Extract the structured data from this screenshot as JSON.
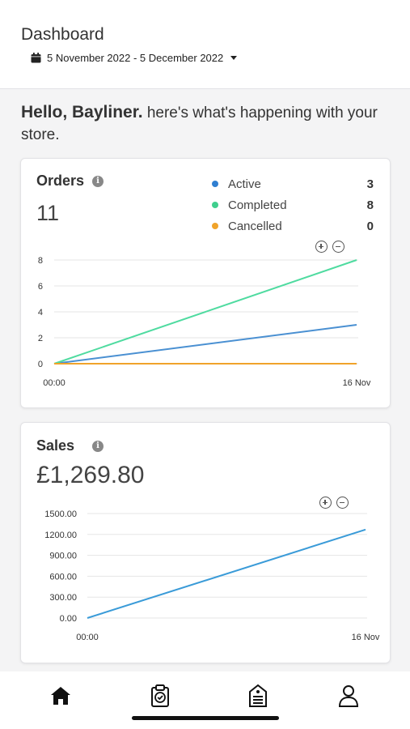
{
  "header": {
    "title": "Dashboard",
    "date_range": "5 November 2022 - 5 December 2022",
    "calendar_icon": "calendar-icon",
    "dropdown_icon": "caret-down-icon"
  },
  "greeting": {
    "hello": "Hello, Bayliner.",
    "message": "here's what's happening with your store."
  },
  "orders": {
    "title": "Orders",
    "total": "11",
    "legend": [
      {
        "label": "Active",
        "count": "3",
        "color": "#2f7fd1"
      },
      {
        "label": "Completed",
        "count": "8",
        "color": "#3fcf8e"
      },
      {
        "label": "Cancelled",
        "count": "0",
        "color": "#f0a32a"
      }
    ]
  },
  "sales": {
    "title": "Sales",
    "total": "£1,269.80"
  },
  "chart_data": [
    {
      "type": "line",
      "title": "Orders",
      "x": [
        "00:00",
        "16 Nov"
      ],
      "ylim": [
        0,
        8
      ],
      "yticks": [
        "0",
        "2",
        "4",
        "6",
        "8"
      ],
      "grid": true,
      "series": [
        {
          "name": "Active",
          "values": [
            0,
            3
          ],
          "color": "#4a90d2"
        },
        {
          "name": "Completed",
          "values": [
            0,
            8
          ],
          "color": "#4fdba0"
        },
        {
          "name": "Cancelled",
          "values": [
            0,
            0
          ],
          "color": "#f0a32a"
        }
      ]
    },
    {
      "type": "line",
      "title": "Sales",
      "x": [
        "00:00",
        "16 Nov"
      ],
      "ylim": [
        0,
        1500
      ],
      "yticks": [
        "0.00",
        "300.00",
        "600.00",
        "900.00",
        "1200.00",
        "1500.00"
      ],
      "grid": true,
      "series": [
        {
          "values": [
            0,
            1269.8
          ],
          "color": "#3a9bd8"
        }
      ]
    }
  ],
  "tabbar": {
    "items": [
      {
        "icon": "home-icon"
      },
      {
        "icon": "orders-clipboard-icon"
      },
      {
        "icon": "products-tag-icon"
      },
      {
        "icon": "account-user-icon"
      }
    ]
  }
}
